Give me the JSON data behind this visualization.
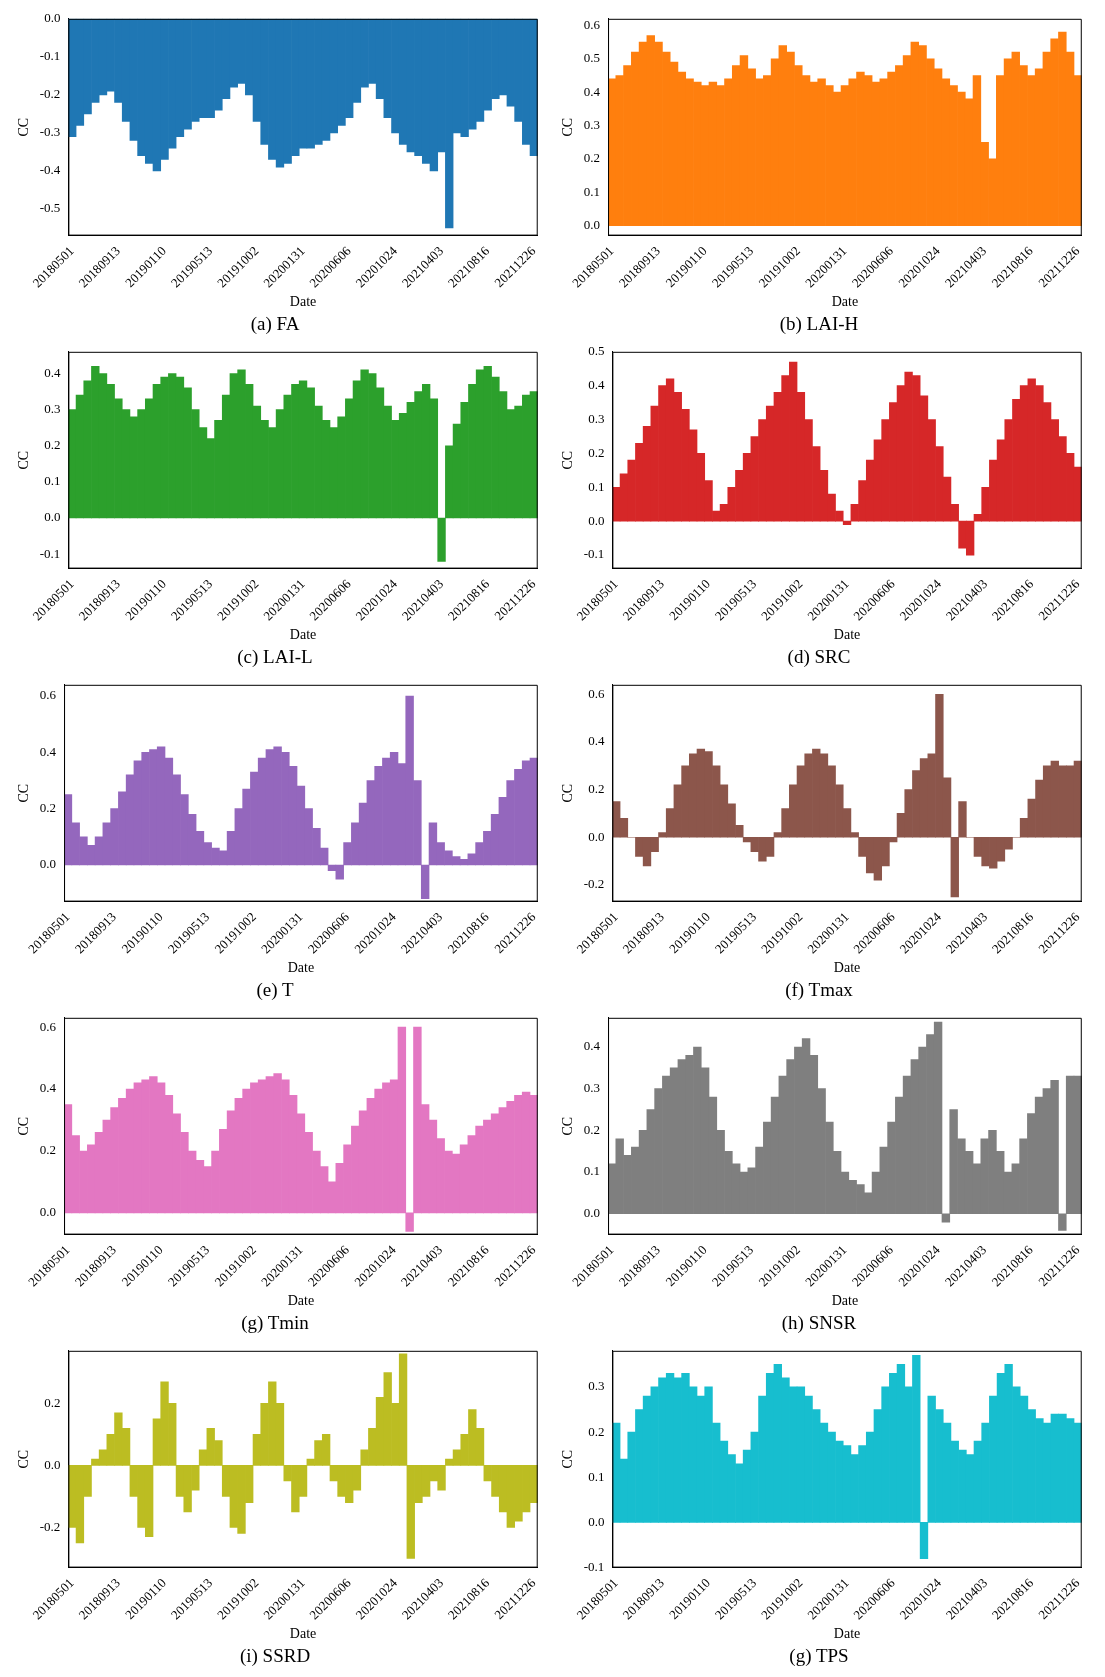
{
  "chart_data": [
    {
      "type": "bar",
      "title": "(a) FA",
      "xlabel": "Date",
      "ylabel": "CC",
      "color": "#1f77b4",
      "categories": [
        "20180501",
        null,
        null,
        null,
        null,
        null,
        "20180913",
        null,
        null,
        null,
        null,
        null,
        "20190110",
        null,
        null,
        null,
        null,
        null,
        "20190513",
        null,
        null,
        null,
        null,
        null,
        "20191002",
        null,
        null,
        null,
        null,
        null,
        "20200131",
        null,
        null,
        null,
        null,
        null,
        "20200606",
        null,
        null,
        null,
        null,
        null,
        "20201024",
        null,
        null,
        null,
        null,
        null,
        "20210403",
        null,
        null,
        null,
        null,
        null,
        "20210816",
        null,
        null,
        null,
        null,
        null,
        "20211226"
      ],
      "ylim": [
        -0.57,
        0
      ],
      "yticks": [
        {
          "value": 0,
          "label": "0.0"
        },
        {
          "value": -0.1,
          "label": "-0.1"
        },
        {
          "value": -0.2,
          "label": "-0.2"
        },
        {
          "value": -0.3,
          "label": "-0.3"
        },
        {
          "value": -0.4,
          "label": "-0.4"
        },
        {
          "value": -0.5,
          "label": "-0.5"
        }
      ],
      "values": [
        -0.31,
        -0.28,
        -0.25,
        -0.22,
        -0.2,
        -0.19,
        -0.22,
        -0.27,
        -0.32,
        -0.36,
        -0.38,
        -0.4,
        -0.37,
        -0.34,
        -0.31,
        -0.29,
        -0.27,
        -0.26,
        -0.26,
        -0.24,
        -0.21,
        -0.18,
        -0.17,
        -0.2,
        -0.27,
        -0.33,
        -0.37,
        -0.39,
        -0.38,
        -0.36,
        -0.34,
        -0.34,
        -0.33,
        -0.32,
        -0.3,
        -0.28,
        -0.26,
        -0.22,
        -0.18,
        -0.17,
        -0.21,
        -0.26,
        -0.3,
        -0.33,
        -0.35,
        -0.36,
        -0.38,
        -0.4,
        -0.35,
        -0.55,
        -0.3,
        -0.31,
        -0.29,
        -0.27,
        -0.24,
        -0.21,
        -0.2,
        -0.23,
        -0.27,
        -0.33,
        -0.36
      ]
    },
    {
      "type": "bar",
      "title": "(b) LAI-H",
      "xlabel": "Date",
      "ylabel": "CC",
      "color": "#ff7f0e",
      "categories": [
        "20180501",
        null,
        null,
        null,
        null,
        null,
        "20180913",
        null,
        null,
        null,
        null,
        null,
        "20190110",
        null,
        null,
        null,
        null,
        null,
        "20190513",
        null,
        null,
        null,
        null,
        null,
        "20191002",
        null,
        null,
        null,
        null,
        null,
        "20200131",
        null,
        null,
        null,
        null,
        null,
        "20200606",
        null,
        null,
        null,
        null,
        null,
        "20201024",
        null,
        null,
        null,
        null,
        null,
        "20210403",
        null,
        null,
        null,
        null,
        null,
        "20210816",
        null,
        null,
        null,
        null,
        null,
        "20211226"
      ],
      "ylim": [
        -0.03,
        0.62
      ],
      "yticks": [
        {
          "value": 0,
          "label": "0.0"
        },
        {
          "value": 0.1,
          "label": "0.1"
        },
        {
          "value": 0.2,
          "label": "0.2"
        },
        {
          "value": 0.3,
          "label": "0.3"
        },
        {
          "value": 0.4,
          "label": "0.4"
        },
        {
          "value": 0.5,
          "label": "0.5"
        },
        {
          "value": 0.6,
          "label": "0.6"
        }
      ],
      "values": [
        0.44,
        0.45,
        0.48,
        0.52,
        0.55,
        0.57,
        0.55,
        0.52,
        0.49,
        0.46,
        0.44,
        0.43,
        0.42,
        0.43,
        0.42,
        0.44,
        0.48,
        0.51,
        0.47,
        0.44,
        0.45,
        0.5,
        0.54,
        0.52,
        0.48,
        0.45,
        0.43,
        0.44,
        0.42,
        0.4,
        0.42,
        0.44,
        0.46,
        0.45,
        0.43,
        0.44,
        0.46,
        0.48,
        0.51,
        0.55,
        0.54,
        0.5,
        0.47,
        0.44,
        0.42,
        0.4,
        0.38,
        0.45,
        0.25,
        0.2,
        0.45,
        0.5,
        0.52,
        0.48,
        0.45,
        0.47,
        0.52,
        0.56,
        0.58,
        0.52,
        0.45
      ]
    },
    {
      "type": "bar",
      "title": "(c) LAI-L",
      "xlabel": "Date",
      "ylabel": "CC",
      "color": "#2ca02c",
      "categories": [
        "20180501",
        null,
        null,
        null,
        null,
        null,
        "20180913",
        null,
        null,
        null,
        null,
        null,
        "20190110",
        null,
        null,
        null,
        null,
        null,
        "20190513",
        null,
        null,
        null,
        null,
        null,
        "20191002",
        null,
        null,
        null,
        null,
        null,
        "20200131",
        null,
        null,
        null,
        null,
        null,
        "20200606",
        null,
        null,
        null,
        null,
        null,
        "20201024",
        null,
        null,
        null,
        null,
        null,
        "20210403",
        null,
        null,
        null,
        null,
        null,
        "20210816",
        null,
        null,
        null,
        null,
        null,
        "20211226"
      ],
      "ylim": [
        -0.14,
        0.46
      ],
      "yticks": [
        {
          "value": -0.1,
          "label": "-0.1"
        },
        {
          "value": 0,
          "label": "0.0"
        },
        {
          "value": 0.1,
          "label": "0.1"
        },
        {
          "value": 0.2,
          "label": "0.2"
        },
        {
          "value": 0.3,
          "label": "0.3"
        },
        {
          "value": 0.4,
          "label": "0.4"
        }
      ],
      "values": [
        0.3,
        0.34,
        0.38,
        0.42,
        0.4,
        0.37,
        0.33,
        0.3,
        0.28,
        0.3,
        0.33,
        0.37,
        0.39,
        0.4,
        0.39,
        0.36,
        0.3,
        0.25,
        0.22,
        0.27,
        0.34,
        0.4,
        0.41,
        0.37,
        0.31,
        0.27,
        0.25,
        0.3,
        0.34,
        0.37,
        0.38,
        0.36,
        0.31,
        0.27,
        0.25,
        0.28,
        0.33,
        0.38,
        0.41,
        0.4,
        0.36,
        0.31,
        0.27,
        0.29,
        0.32,
        0.35,
        0.37,
        0.33,
        -0.12,
        0.2,
        0.26,
        0.32,
        0.37,
        0.41,
        0.42,
        0.39,
        0.35,
        0.3,
        0.31,
        0.34,
        0.35
      ]
    },
    {
      "type": "bar",
      "title": "(d) SRC",
      "xlabel": "Date",
      "ylabel": "CC",
      "color": "#d62728",
      "categories": [
        "20180501",
        null,
        null,
        null,
        null,
        null,
        "20180913",
        null,
        null,
        null,
        null,
        null,
        "20190110",
        null,
        null,
        null,
        null,
        null,
        "20190513",
        null,
        null,
        null,
        null,
        null,
        "20191002",
        null,
        null,
        null,
        null,
        null,
        "20200131",
        null,
        null,
        null,
        null,
        null,
        "20200606",
        null,
        null,
        null,
        null,
        null,
        "20201024",
        null,
        null,
        null,
        null,
        null,
        "20210403",
        null,
        null,
        null,
        null,
        null,
        "20210816",
        null,
        null,
        null,
        null,
        null,
        "20211226"
      ],
      "ylim": [
        -0.14,
        0.5
      ],
      "yticks": [
        {
          "value": -0.1,
          "label": "-0.1"
        },
        {
          "value": 0,
          "label": "0.0"
        },
        {
          "value": 0.1,
          "label": "0.1"
        },
        {
          "value": 0.2,
          "label": "0.2"
        },
        {
          "value": 0.3,
          "label": "0.3"
        },
        {
          "value": 0.4,
          "label": "0.4"
        },
        {
          "value": 0.5,
          "label": "0.5"
        }
      ],
      "values": [
        0.1,
        0.14,
        0.18,
        0.23,
        0.28,
        0.34,
        0.4,
        0.42,
        0.38,
        0.33,
        0.27,
        0.2,
        0.12,
        0.03,
        0.05,
        0.1,
        0.15,
        0.2,
        0.25,
        0.3,
        0.34,
        0.38,
        0.43,
        0.47,
        0.38,
        0.3,
        0.22,
        0.15,
        0.08,
        0.03,
        -0.01,
        0.05,
        0.12,
        0.18,
        0.24,
        0.3,
        0.35,
        0.4,
        0.44,
        0.43,
        0.37,
        0.3,
        0.22,
        0.13,
        0.05,
        -0.08,
        -0.1,
        0.02,
        0.1,
        0.18,
        0.24,
        0.3,
        0.36,
        0.4,
        0.42,
        0.4,
        0.35,
        0.3,
        0.25,
        0.2,
        0.16
      ]
    },
    {
      "type": "bar",
      "title": "(e) T",
      "xlabel": "Date",
      "ylabel": "CC",
      "color": "#9467bd",
      "categories": [
        "20180501",
        null,
        null,
        null,
        null,
        null,
        "20180913",
        null,
        null,
        null,
        null,
        null,
        "20190110",
        null,
        null,
        null,
        null,
        null,
        "20190513",
        null,
        null,
        null,
        null,
        null,
        "20191002",
        null,
        null,
        null,
        null,
        null,
        "20200131",
        null,
        null,
        null,
        null,
        null,
        "20200606",
        null,
        null,
        null,
        null,
        null,
        "20201024",
        null,
        null,
        null,
        null,
        null,
        "20210403",
        null,
        null,
        null,
        null,
        null,
        "20210816",
        null,
        null,
        null,
        null,
        null,
        "20211226"
      ],
      "ylim": [
        -0.13,
        0.64
      ],
      "yticks": [
        {
          "value": 0,
          "label": "0.0"
        },
        {
          "value": 0.2,
          "label": "0.2"
        },
        {
          "value": 0.4,
          "label": "0.4"
        },
        {
          "value": 0.6,
          "label": "0.6"
        }
      ],
      "values": [
        0.25,
        0.15,
        0.1,
        0.07,
        0.1,
        0.15,
        0.2,
        0.26,
        0.32,
        0.37,
        0.4,
        0.41,
        0.42,
        0.38,
        0.32,
        0.25,
        0.18,
        0.12,
        0.08,
        0.06,
        0.05,
        0.12,
        0.2,
        0.27,
        0.33,
        0.38,
        0.41,
        0.42,
        0.4,
        0.35,
        0.28,
        0.2,
        0.13,
        0.06,
        -0.02,
        -0.05,
        0.08,
        0.15,
        0.22,
        0.3,
        0.35,
        0.38,
        0.4,
        0.36,
        0.6,
        0.3,
        -0.12,
        0.15,
        0.08,
        0.05,
        0.03,
        0.02,
        0.04,
        0.08,
        0.12,
        0.18,
        0.24,
        0.3,
        0.34,
        0.37,
        0.38
      ]
    },
    {
      "type": "bar",
      "title": "(f) Tmax",
      "xlabel": "Date",
      "ylabel": "CC",
      "color": "#8c564b",
      "categories": [
        "20180501",
        null,
        null,
        null,
        null,
        null,
        "20180913",
        null,
        null,
        null,
        null,
        null,
        "20190110",
        null,
        null,
        null,
        null,
        null,
        "20190513",
        null,
        null,
        null,
        null,
        null,
        "20191002",
        null,
        null,
        null,
        null,
        null,
        "20200131",
        null,
        null,
        null,
        null,
        null,
        "20200606",
        null,
        null,
        null,
        null,
        null,
        "20201024",
        null,
        null,
        null,
        null,
        null,
        "20210403",
        null,
        null,
        null,
        null,
        null,
        "20210816",
        null,
        null,
        null,
        null,
        null,
        "20211226"
      ],
      "ylim": [
        -0.27,
        0.64
      ],
      "yticks": [
        {
          "value": -0.2,
          "label": "-0.2"
        },
        {
          "value": 0,
          "label": "0.0"
        },
        {
          "value": 0.2,
          "label": "0.2"
        },
        {
          "value": 0.4,
          "label": "0.4"
        },
        {
          "value": 0.6,
          "label": "0.6"
        }
      ],
      "values": [
        0.15,
        0.08,
        0.0,
        -0.08,
        -0.12,
        -0.06,
        0.02,
        0.12,
        0.22,
        0.3,
        0.35,
        0.37,
        0.36,
        0.3,
        0.22,
        0.14,
        0.05,
        -0.02,
        -0.06,
        -0.1,
        -0.08,
        0.02,
        0.12,
        0.22,
        0.3,
        0.35,
        0.37,
        0.35,
        0.3,
        0.22,
        0.12,
        0.02,
        -0.08,
        -0.15,
        -0.18,
        -0.12,
        -0.02,
        0.1,
        0.2,
        0.28,
        0.33,
        0.35,
        0.6,
        0.25,
        -0.25,
        0.15,
        0.0,
        -0.08,
        -0.12,
        -0.13,
        -0.1,
        -0.05,
        0.0,
        0.08,
        0.16,
        0.24,
        0.3,
        0.32,
        0.3,
        0.3,
        0.32
      ]
    },
    {
      "type": "bar",
      "title": "(g) Tmin",
      "xlabel": "Date",
      "ylabel": "CC",
      "color": "#e377c2",
      "categories": [
        "20180501",
        null,
        null,
        null,
        null,
        null,
        "20180913",
        null,
        null,
        null,
        null,
        null,
        "20190110",
        null,
        null,
        null,
        null,
        null,
        "20190513",
        null,
        null,
        null,
        null,
        null,
        "20191002",
        null,
        null,
        null,
        null,
        null,
        "20200131",
        null,
        null,
        null,
        null,
        null,
        "20200606",
        null,
        null,
        null,
        null,
        null,
        "20201024",
        null,
        null,
        null,
        null,
        null,
        "20210403",
        null,
        null,
        null,
        null,
        null,
        "20210816",
        null,
        null,
        null,
        null,
        null,
        "20211226"
      ],
      "ylim": [
        -0.07,
        0.63
      ],
      "yticks": [
        {
          "value": 0,
          "label": "0.0"
        },
        {
          "value": 0.2,
          "label": "0.2"
        },
        {
          "value": 0.4,
          "label": "0.4"
        },
        {
          "value": 0.6,
          "label": "0.6"
        }
      ],
      "values": [
        0.35,
        0.25,
        0.2,
        0.22,
        0.26,
        0.3,
        0.34,
        0.37,
        0.4,
        0.42,
        0.43,
        0.44,
        0.42,
        0.38,
        0.32,
        0.26,
        0.2,
        0.17,
        0.15,
        0.2,
        0.27,
        0.33,
        0.37,
        0.4,
        0.42,
        0.43,
        0.44,
        0.45,
        0.43,
        0.38,
        0.32,
        0.26,
        0.2,
        0.15,
        0.1,
        0.16,
        0.22,
        0.28,
        0.33,
        0.37,
        0.4,
        0.42,
        0.43,
        0.6,
        -0.06,
        0.6,
        0.35,
        0.3,
        0.24,
        0.2,
        0.19,
        0.22,
        0.25,
        0.28,
        0.3,
        0.32,
        0.34,
        0.36,
        0.38,
        0.39,
        0.38
      ]
    },
    {
      "type": "bar",
      "title": "(h) SNSR",
      "xlabel": "Date",
      "ylabel": "CC",
      "color": "#7f7f7f",
      "categories": [
        "20180501",
        null,
        null,
        null,
        null,
        null,
        "20180913",
        null,
        null,
        null,
        null,
        null,
        "20190110",
        null,
        null,
        null,
        null,
        null,
        "20190513",
        null,
        null,
        null,
        null,
        null,
        "20191002",
        null,
        null,
        null,
        null,
        null,
        "20200131",
        null,
        null,
        null,
        null,
        null,
        "20200606",
        null,
        null,
        null,
        null,
        null,
        "20201024",
        null,
        null,
        null,
        null,
        null,
        "20210403",
        null,
        null,
        null,
        null,
        null,
        "20210816",
        null,
        null,
        null,
        null,
        null,
        "20211226"
      ],
      "ylim": [
        -0.05,
        0.47
      ],
      "yticks": [
        {
          "value": 0,
          "label": "0.0"
        },
        {
          "value": 0.1,
          "label": "0.1"
        },
        {
          "value": 0.2,
          "label": "0.2"
        },
        {
          "value": 0.3,
          "label": "0.3"
        },
        {
          "value": 0.4,
          "label": "0.4"
        }
      ],
      "values": [
        0.12,
        0.18,
        0.14,
        0.16,
        0.2,
        0.25,
        0.3,
        0.33,
        0.35,
        0.37,
        0.38,
        0.4,
        0.35,
        0.28,
        0.2,
        0.15,
        0.12,
        0.1,
        0.11,
        0.16,
        0.22,
        0.28,
        0.33,
        0.37,
        0.4,
        0.42,
        0.38,
        0.3,
        0.22,
        0.15,
        0.1,
        0.08,
        0.07,
        0.05,
        0.1,
        0.16,
        0.22,
        0.28,
        0.33,
        0.37,
        0.4,
        0.43,
        0.46,
        -0.02,
        0.25,
        0.18,
        0.15,
        0.12,
        0.18,
        0.2,
        0.15,
        0.1,
        0.12,
        0.18,
        0.24,
        0.28,
        0.3,
        0.32,
        -0.04,
        0.33,
        0.33
      ]
    },
    {
      "type": "bar",
      "title": "(i) SSRD",
      "xlabel": "Date",
      "ylabel": "CC",
      "color": "#bcbd22",
      "categories": [
        "20180501",
        null,
        null,
        null,
        null,
        null,
        "20180913",
        null,
        null,
        null,
        null,
        null,
        "20190110",
        null,
        null,
        null,
        null,
        null,
        "20190513",
        null,
        null,
        null,
        null,
        null,
        "20191002",
        null,
        null,
        null,
        null,
        null,
        "20200131",
        null,
        null,
        null,
        null,
        null,
        "20200606",
        null,
        null,
        null,
        null,
        null,
        "20201024",
        null,
        null,
        null,
        null,
        null,
        "20210403",
        null,
        null,
        null,
        null,
        null,
        "20210816",
        null,
        null,
        null,
        null,
        null,
        "20211226"
      ],
      "ylim": [
        -0.33,
        0.37
      ],
      "yticks": [
        {
          "value": -0.2,
          "label": "-0.2"
        },
        {
          "value": 0,
          "label": "0.0"
        },
        {
          "value": 0.2,
          "label": "0.2"
        }
      ],
      "values": [
        -0.2,
        -0.25,
        -0.1,
        0.02,
        0.05,
        0.1,
        0.17,
        0.12,
        -0.1,
        -0.2,
        -0.23,
        0.15,
        0.27,
        0.2,
        -0.1,
        -0.15,
        -0.08,
        0.05,
        0.12,
        0.08,
        -0.1,
        -0.2,
        -0.22,
        -0.12,
        0.1,
        0.2,
        0.27,
        0.2,
        -0.05,
        -0.15,
        -0.1,
        0.02,
        0.08,
        0.1,
        -0.05,
        -0.1,
        -0.12,
        -0.08,
        0.05,
        0.12,
        0.22,
        0.3,
        0.2,
        0.36,
        -0.3,
        -0.12,
        -0.1,
        -0.05,
        -0.08,
        0.02,
        0.05,
        0.1,
        0.18,
        0.12,
        -0.05,
        -0.1,
        -0.15,
        -0.2,
        -0.18,
        -0.15,
        -0.12
      ]
    },
    {
      "type": "bar",
      "title": "(g) TPS",
      "xlabel": "Date",
      "ylabel": "CC",
      "color": "#17becf",
      "categories": [
        "20180501",
        null,
        null,
        null,
        null,
        null,
        "20180913",
        null,
        null,
        null,
        null,
        null,
        "20190110",
        null,
        null,
        null,
        null,
        null,
        "20190513",
        null,
        null,
        null,
        null,
        null,
        "20191002",
        null,
        null,
        null,
        null,
        null,
        "20200131",
        null,
        null,
        null,
        null,
        null,
        "20200606",
        null,
        null,
        null,
        null,
        null,
        "20201024",
        null,
        null,
        null,
        null,
        null,
        "20210403",
        null,
        null,
        null,
        null,
        null,
        "20210816",
        null,
        null,
        null,
        null,
        null,
        "20211226"
      ],
      "ylim": [
        -0.1,
        0.38
      ],
      "yticks": [
        {
          "value": -0.1,
          "label": "-0.1"
        },
        {
          "value": 0,
          "label": "0.0"
        },
        {
          "value": 0.1,
          "label": "0.1"
        },
        {
          "value": 0.2,
          "label": "0.2"
        },
        {
          "value": 0.3,
          "label": "0.3"
        }
      ],
      "values": [
        0.22,
        0.14,
        0.2,
        0.25,
        0.28,
        0.3,
        0.32,
        0.33,
        0.32,
        0.33,
        0.3,
        0.28,
        0.3,
        0.22,
        0.18,
        0.15,
        0.13,
        0.16,
        0.2,
        0.28,
        0.33,
        0.35,
        0.32,
        0.3,
        0.3,
        0.28,
        0.25,
        0.22,
        0.2,
        0.18,
        0.17,
        0.15,
        0.17,
        0.2,
        0.25,
        0.3,
        0.33,
        0.35,
        0.3,
        0.37,
        -0.08,
        0.28,
        0.25,
        0.22,
        0.18,
        0.16,
        0.15,
        0.18,
        0.22,
        0.28,
        0.33,
        0.35,
        0.3,
        0.28,
        0.25,
        0.23,
        0.22,
        0.24,
        0.24,
        0.23,
        0.22
      ]
    }
  ]
}
